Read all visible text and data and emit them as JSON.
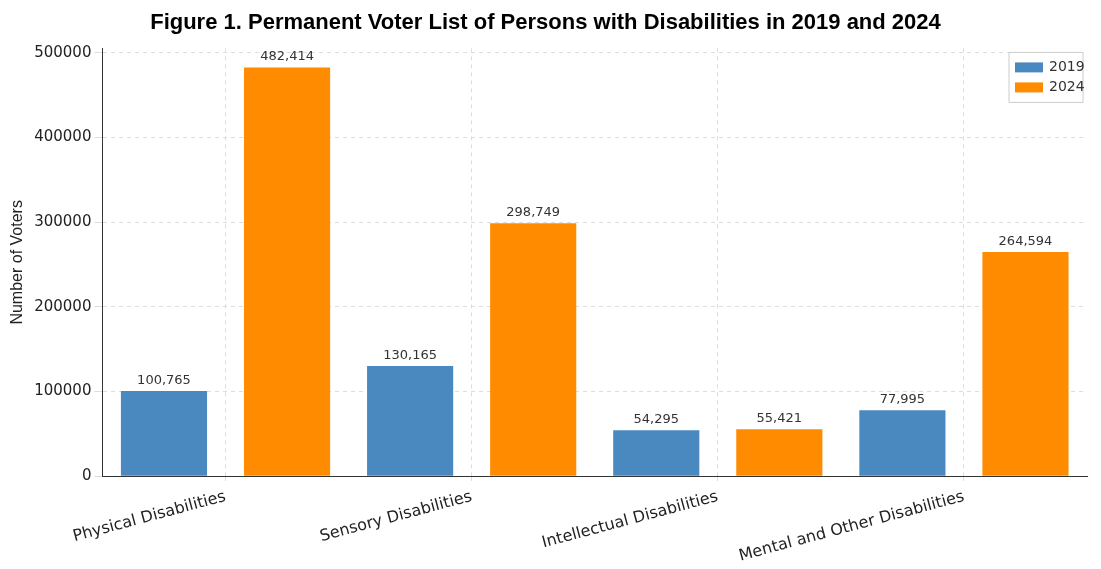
{
  "chart_data": {
    "type": "bar",
    "title": "Figure 1. Permanent Voter List of Persons with Disabilities in 2019 and 2024",
    "ylabel": "Number of Voters",
    "categories": [
      "Physical Disabilities",
      "Sensory Disabilities",
      "Intellectual Disabilities",
      "Mental and Other Disabilities"
    ],
    "series": [
      {
        "name": "2019",
        "color": "#4a89c0",
        "values": [
          100765,
          130165,
          54295,
          77995
        ],
        "value_labels": [
          "100,765",
          "130,165",
          "54,295",
          "77,995"
        ]
      },
      {
        "name": "2024",
        "color": "#ff8c00",
        "values": [
          482414,
          298749,
          55421,
          264594
        ],
        "value_labels": [
          "482,414",
          "298,749",
          "55,421",
          "264,594"
        ]
      }
    ],
    "ylim": [
      0,
      505000
    ],
    "yticks": [
      0,
      100000,
      200000,
      300000,
      400000,
      500000
    ],
    "grid": true,
    "legend": "top right"
  }
}
